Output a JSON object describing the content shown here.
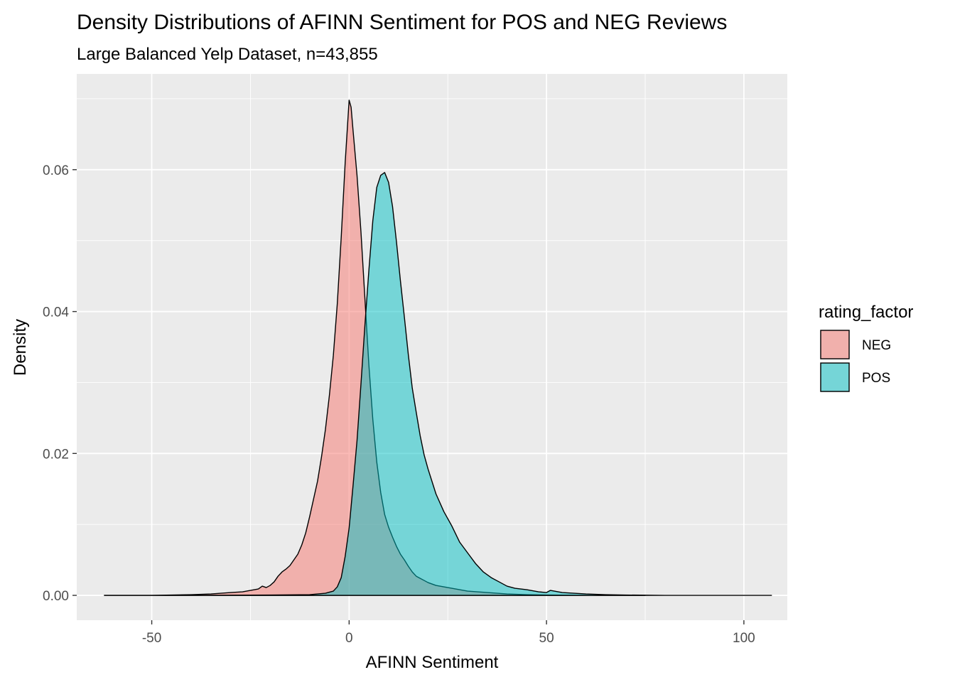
{
  "chart_data": {
    "type": "area",
    "title": "Density Distributions of AFINN Sentiment for POS and NEG Reviews",
    "subtitle": "Large Balanced Yelp Dataset, n=43,855",
    "xlabel": "AFINN Sentiment",
    "ylabel": "Density",
    "xlim": [
      -69,
      111
    ],
    "ylim": [
      -0.0035,
      0.0735
    ],
    "x_ticks": [
      -50,
      0,
      50,
      100
    ],
    "x_tick_labels": [
      "-50",
      "0",
      "50",
      "100"
    ],
    "y_ticks": [
      0.0,
      0.02,
      0.04,
      0.06
    ],
    "y_tick_labels": [
      "0.00",
      "0.02",
      "0.04",
      "0.06"
    ],
    "grid": true,
    "legend": {
      "title": "rating_factor",
      "position": "right"
    },
    "series": [
      {
        "name": "NEG",
        "color": "#f8766d",
        "points": [
          [
            -62,
            0
          ],
          [
            -50,
            0
          ],
          [
            -40,
            0.0001
          ],
          [
            -35,
            0.0002
          ],
          [
            -30,
            0.0004
          ],
          [
            -27,
            0.0005
          ],
          [
            -25,
            0.0007
          ],
          [
            -23,
            0.0009
          ],
          [
            -22,
            0.0013
          ],
          [
            -21,
            0.0011
          ],
          [
            -20,
            0.0014
          ],
          [
            -19,
            0.0019
          ],
          [
            -18,
            0.0027
          ],
          [
            -17,
            0.0033
          ],
          [
            -16,
            0.0037
          ],
          [
            -15,
            0.0042
          ],
          [
            -14,
            0.005
          ],
          [
            -13,
            0.0058
          ],
          [
            -12,
            0.0071
          ],
          [
            -11,
            0.0088
          ],
          [
            -10,
            0.0111
          ],
          [
            -9,
            0.0136
          ],
          [
            -8,
            0.0161
          ],
          [
            -7,
            0.0195
          ],
          [
            -6,
            0.0234
          ],
          [
            -5,
            0.0282
          ],
          [
            -4,
            0.0338
          ],
          [
            -3,
            0.0411
          ],
          [
            -2,
            0.0505
          ],
          [
            -1,
            0.061
          ],
          [
            0,
            0.0698
          ],
          [
            0.5,
            0.0688
          ],
          [
            1,
            0.0655
          ],
          [
            2,
            0.0592
          ],
          [
            3,
            0.0512
          ],
          [
            4,
            0.0418
          ],
          [
            5,
            0.0325
          ],
          [
            6,
            0.0248
          ],
          [
            7,
            0.0188
          ],
          [
            8,
            0.0145
          ],
          [
            9,
            0.0114
          ],
          [
            10,
            0.0096
          ],
          [
            11,
            0.0082
          ],
          [
            12,
            0.0069
          ],
          [
            13,
            0.0058
          ],
          [
            14,
            0.005
          ],
          [
            15,
            0.0041
          ],
          [
            16,
            0.0033
          ],
          [
            17,
            0.0027
          ],
          [
            18,
            0.0024
          ],
          [
            19,
            0.0021
          ],
          [
            20,
            0.0018
          ],
          [
            22,
            0.0014
          ],
          [
            24,
            0.0012
          ],
          [
            26,
            0.001
          ],
          [
            28,
            0.0008
          ],
          [
            30,
            0.0006
          ],
          [
            35,
            0.0004
          ],
          [
            40,
            0.0002
          ],
          [
            45,
            0.0001
          ],
          [
            50,
            5e-05
          ],
          [
            60,
            0
          ],
          [
            75,
            0
          ]
        ]
      },
      {
        "name": "POS",
        "color": "#00bfc4",
        "points": [
          [
            -62,
            0
          ],
          [
            -40,
            0
          ],
          [
            -20,
            5e-05
          ],
          [
            -10,
            0.0001
          ],
          [
            -8,
            0.0002
          ],
          [
            -6,
            0.0003
          ],
          [
            -4,
            0.0006
          ],
          [
            -3,
            0.0012
          ],
          [
            -2,
            0.0025
          ],
          [
            -1,
            0.0055
          ],
          [
            0,
            0.0095
          ],
          [
            1,
            0.0155
          ],
          [
            2,
            0.0218
          ],
          [
            3,
            0.0298
          ],
          [
            4,
            0.0381
          ],
          [
            5,
            0.0458
          ],
          [
            6,
            0.0528
          ],
          [
            7,
            0.0575
          ],
          [
            8,
            0.0592
          ],
          [
            9,
            0.0596
          ],
          [
            10,
            0.0582
          ],
          [
            11,
            0.0548
          ],
          [
            12,
            0.0498
          ],
          [
            13,
            0.0443
          ],
          [
            14,
            0.0392
          ],
          [
            15,
            0.0339
          ],
          [
            16,
            0.0292
          ],
          [
            17,
            0.0258
          ],
          [
            18,
            0.0225
          ],
          [
            19,
            0.0198
          ],
          [
            20,
            0.0178
          ],
          [
            22,
            0.0143
          ],
          [
            24,
            0.0118
          ],
          [
            26,
            0.0098
          ],
          [
            28,
            0.0075
          ],
          [
            30,
            0.006
          ],
          [
            32,
            0.0045
          ],
          [
            34,
            0.0033
          ],
          [
            36,
            0.0025
          ],
          [
            38,
            0.0019
          ],
          [
            40,
            0.0013
          ],
          [
            42,
            0.001
          ],
          [
            45,
            0.0008
          ],
          [
            48,
            0.0005
          ],
          [
            50,
            0.0004
          ],
          [
            51,
            0.0007
          ],
          [
            52,
            0.0006
          ],
          [
            54,
            0.0004
          ],
          [
            57,
            0.0003
          ],
          [
            60,
            0.0002
          ],
          [
            65,
            0.0001
          ],
          [
            70,
            5e-05
          ],
          [
            80,
            0
          ],
          [
            107,
            0
          ]
        ]
      }
    ]
  }
}
